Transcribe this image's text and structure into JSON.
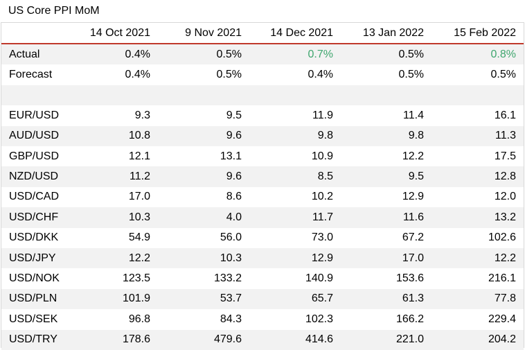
{
  "chart_data": {
    "type": "table",
    "title": "US Core PPI MoM",
    "columns": [
      "14 Oct 2021",
      "9 Nov 2021",
      "14 Dec 2021",
      "13 Jan 2022",
      "15 Feb 2022"
    ],
    "rows": [
      {
        "label": "Actual",
        "values": [
          "0.4%",
          "0.5%",
          "0.7%",
          "0.5%",
          "0.8%"
        ],
        "highlight": [
          false,
          false,
          true,
          false,
          true
        ]
      },
      {
        "label": "Forecast",
        "values": [
          "0.4%",
          "0.5%",
          "0.4%",
          "0.5%",
          "0.5%"
        ],
        "highlight": [
          false,
          false,
          false,
          false,
          false
        ]
      },
      {
        "label": "",
        "values": [
          "",
          "",
          "",
          "",
          ""
        ],
        "highlight": [
          false,
          false,
          false,
          false,
          false
        ]
      },
      {
        "label": "EUR/USD",
        "values": [
          "9.3",
          "9.5",
          "11.9",
          "11.4",
          "16.1"
        ],
        "highlight": [
          false,
          false,
          false,
          false,
          false
        ]
      },
      {
        "label": "AUD/USD",
        "values": [
          "10.8",
          "9.6",
          "9.8",
          "9.8",
          "11.3"
        ],
        "highlight": [
          false,
          false,
          false,
          false,
          false
        ]
      },
      {
        "label": "GBP/USD",
        "values": [
          "12.1",
          "13.1",
          "10.9",
          "12.2",
          "17.5"
        ],
        "highlight": [
          false,
          false,
          false,
          false,
          false
        ]
      },
      {
        "label": "NZD/USD",
        "values": [
          "11.2",
          "9.6",
          "8.5",
          "9.5",
          "12.8"
        ],
        "highlight": [
          false,
          false,
          false,
          false,
          false
        ]
      },
      {
        "label": "USD/CAD",
        "values": [
          "17.0",
          "8.6",
          "10.2",
          "12.9",
          "12.0"
        ],
        "highlight": [
          false,
          false,
          false,
          false,
          false
        ]
      },
      {
        "label": "USD/CHF",
        "values": [
          "10.3",
          "4.0",
          "11.7",
          "11.6",
          "13.2"
        ],
        "highlight": [
          false,
          false,
          false,
          false,
          false
        ]
      },
      {
        "label": "USD/DKK",
        "values": [
          "54.9",
          "56.0",
          "73.0",
          "67.2",
          "102.6"
        ],
        "highlight": [
          false,
          false,
          false,
          false,
          false
        ]
      },
      {
        "label": "USD/JPY",
        "values": [
          "12.2",
          "10.3",
          "12.9",
          "17.0",
          "12.2"
        ],
        "highlight": [
          false,
          false,
          false,
          false,
          false
        ]
      },
      {
        "label": "USD/NOK",
        "values": [
          "123.5",
          "133.2",
          "140.9",
          "153.6",
          "216.1"
        ],
        "highlight": [
          false,
          false,
          false,
          false,
          false
        ]
      },
      {
        "label": "USD/PLN",
        "values": [
          "101.9",
          "53.7",
          "65.7",
          "61.3",
          "77.8"
        ],
        "highlight": [
          false,
          false,
          false,
          false,
          false
        ]
      },
      {
        "label": "USD/SEK",
        "values": [
          "96.8",
          "84.3",
          "102.3",
          "166.2",
          "229.4"
        ],
        "highlight": [
          false,
          false,
          false,
          false,
          false
        ]
      },
      {
        "label": "USD/TRY",
        "values": [
          "178.6",
          "479.6",
          "414.6",
          "221.0",
          "204.2"
        ],
        "highlight": [
          false,
          false,
          false,
          false,
          false
        ]
      }
    ],
    "highlight_color": "#3fa66e",
    "header_rule_color": "#c0392b",
    "stripe_color": "#f2f2f2"
  }
}
